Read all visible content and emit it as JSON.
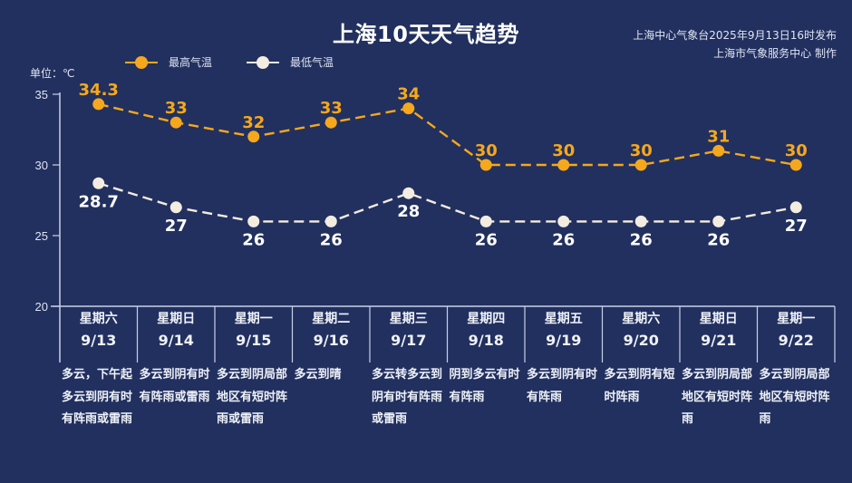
{
  "header": {
    "title": "上海10天天气趋势",
    "publisher_line1": "上海中心气象台2025年9月13日16时发布",
    "publisher_line2": "上海市气象服务中心 制作",
    "unit": "单位：℃"
  },
  "legend": [
    {
      "label": "最高气温",
      "color": "#f5a81c"
    },
    {
      "label": "最低气温",
      "color": "#f3ece0"
    }
  ],
  "colors": {
    "background": "#22305f",
    "high": "#f5a81c",
    "low": "#f3ece0",
    "axis": "#c9d0e6"
  },
  "days": [
    {
      "weekday": "星期六",
      "date": "9/13",
      "desc": "多云，下午起多云到阴有时有阵雨或雷雨"
    },
    {
      "weekday": "星期日",
      "date": "9/14",
      "desc": "多云到阴有时有阵雨或雷雨"
    },
    {
      "weekday": "星期一",
      "date": "9/15",
      "desc": "多云到阴局部地区有短时阵雨或雷雨"
    },
    {
      "weekday": "星期二",
      "date": "9/16",
      "desc": "多云到晴"
    },
    {
      "weekday": "星期三",
      "date": "9/17",
      "desc": "多云转多云到阴有时有阵雨或雷雨"
    },
    {
      "weekday": "星期四",
      "date": "9/18",
      "desc": "阴到多云有时有阵雨"
    },
    {
      "weekday": "星期五",
      "date": "9/19",
      "desc": "多云到阴有时有阵雨"
    },
    {
      "weekday": "星期六",
      "date": "9/20",
      "desc": "多云到阴有短时阵雨"
    },
    {
      "weekday": "星期日",
      "date": "9/21",
      "desc": "多云到阴局部地区有短时阵雨"
    },
    {
      "weekday": "星期一",
      "date": "9/22",
      "desc": "多云到阴局部地区有短时阵雨"
    }
  ],
  "chart_data": {
    "type": "line",
    "title": "上海10天天气趋势",
    "xlabel": "",
    "ylabel": "单位：℃",
    "categories": [
      "9/13",
      "9/14",
      "9/15",
      "9/16",
      "9/17",
      "9/18",
      "9/19",
      "9/20",
      "9/21",
      "9/22"
    ],
    "series": [
      {
        "name": "最高气温",
        "values": [
          34.3,
          33,
          32,
          33,
          34,
          30,
          30,
          30,
          31,
          30
        ],
        "labels": [
          "34.3",
          "33",
          "32",
          "33",
          "34",
          "30",
          "30",
          "30",
          "31",
          "30"
        ]
      },
      {
        "name": "最低气温",
        "values": [
          28.7,
          27,
          26,
          26,
          28,
          26,
          26,
          26,
          26,
          27
        ],
        "labels": [
          "28.7",
          "27",
          "26",
          "26",
          "28",
          "26",
          "26",
          "26",
          "26",
          "27"
        ]
      }
    ],
    "ylim": [
      20,
      35
    ],
    "yticks": [
      "35",
      "30",
      "25",
      "20"
    ],
    "grid": false,
    "legend_position": "top-left",
    "line_style": "dashed"
  }
}
